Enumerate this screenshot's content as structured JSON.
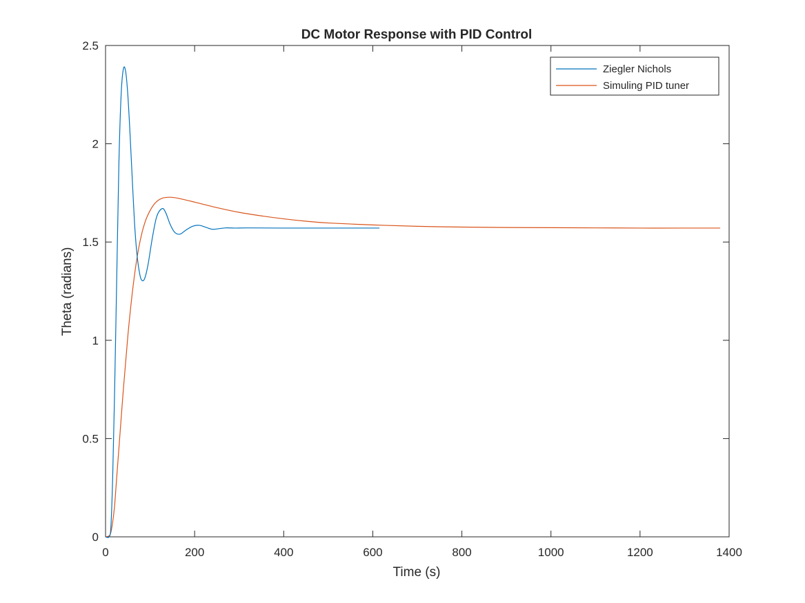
{
  "chart_data": {
    "type": "line",
    "title": "DC Motor Response with PID Control",
    "xlabel": "Time (s)",
    "ylabel": "Theta (radians)",
    "xlim": [
      0,
      1400
    ],
    "ylim": [
      0,
      2.5
    ],
    "xticks": [
      0,
      200,
      400,
      600,
      800,
      1000,
      1200,
      1400
    ],
    "yticks": [
      0,
      0.5,
      1,
      1.5,
      2,
      2.5
    ],
    "xtick_labels": [
      "0",
      "200",
      "400",
      "600",
      "800",
      "1000",
      "1200",
      "1400"
    ],
    "ytick_labels": [
      "0",
      "0.5",
      "1",
      "1.5",
      "2",
      "2.5"
    ],
    "grid": false,
    "box": true,
    "legend_position": "top-right",
    "series": [
      {
        "name": "Ziegler Nichols",
        "color": "#0072BD",
        "x": [
          0,
          8,
          12,
          16,
          20,
          25,
          30,
          35,
          40,
          45,
          50,
          55,
          60,
          65,
          70,
          75,
          80,
          87,
          95,
          105,
          115,
          127,
          135,
          145,
          155,
          167,
          180,
          195,
          210,
          225,
          240,
          255,
          270,
          290,
          320,
          400,
          500,
          615
        ],
        "y": [
          0,
          0,
          0.05,
          0.3,
          0.7,
          1.3,
          1.9,
          2.25,
          2.38,
          2.37,
          2.25,
          2.05,
          1.82,
          1.6,
          1.45,
          1.36,
          1.31,
          1.31,
          1.38,
          1.52,
          1.63,
          1.67,
          1.65,
          1.59,
          1.55,
          1.54,
          1.56,
          1.58,
          1.585,
          1.575,
          1.565,
          1.568,
          1.572,
          1.571,
          1.572,
          1.571,
          1.571,
          1.571
        ]
      },
      {
        "name": "Simuling PID tuner",
        "color": "#D95319",
        "x": [
          0,
          10,
          15,
          20,
          25,
          30,
          40,
          50,
          60,
          70,
          80,
          90,
          100,
          110,
          120,
          130,
          145,
          160,
          180,
          200,
          250,
          300,
          350,
          400,
          450,
          500,
          600,
          700,
          800,
          900,
          1000,
          1100,
          1200,
          1300,
          1380
        ],
        "y": [
          0,
          0.01,
          0.06,
          0.15,
          0.3,
          0.45,
          0.75,
          1.02,
          1.24,
          1.41,
          1.53,
          1.61,
          1.66,
          1.695,
          1.715,
          1.725,
          1.728,
          1.724,
          1.714,
          1.703,
          1.675,
          1.651,
          1.633,
          1.618,
          1.606,
          1.597,
          1.587,
          1.58,
          1.576,
          1.574,
          1.573,
          1.572,
          1.571,
          1.571,
          1.571
        ]
      }
    ]
  }
}
